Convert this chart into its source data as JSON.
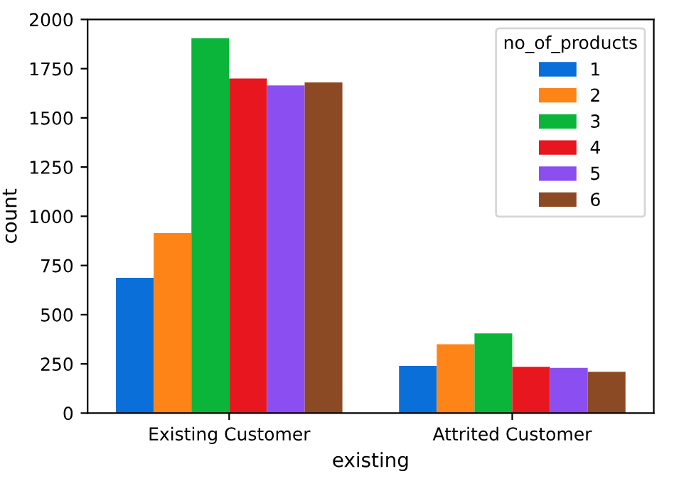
{
  "chart_data": {
    "type": "bar",
    "xlabel": "existing",
    "ylabel": "count",
    "legend_title": "no_of_products",
    "categories": [
      "Existing Customer",
      "Attrited Customer"
    ],
    "series": [
      {
        "name": "1",
        "color": "#0a6fd8",
        "values": [
          687,
          240
        ]
      },
      {
        "name": "2",
        "color": "#ff8418",
        "values": [
          915,
          350
        ]
      },
      {
        "name": "3",
        "color": "#0ab53a",
        "values": [
          1905,
          405
        ]
      },
      {
        "name": "4",
        "color": "#e8161e",
        "values": [
          1700,
          235
        ]
      },
      {
        "name": "5",
        "color": "#8b4ef0",
        "values": [
          1665,
          230
        ]
      },
      {
        "name": "6",
        "color": "#8c4a24",
        "values": [
          1680,
          210
        ]
      }
    ],
    "ylim": [
      0,
      2000
    ],
    "yticks": [
      0,
      250,
      500,
      750,
      1000,
      1250,
      1500,
      1750,
      2000
    ],
    "grid": false,
    "legend": "top right"
  }
}
